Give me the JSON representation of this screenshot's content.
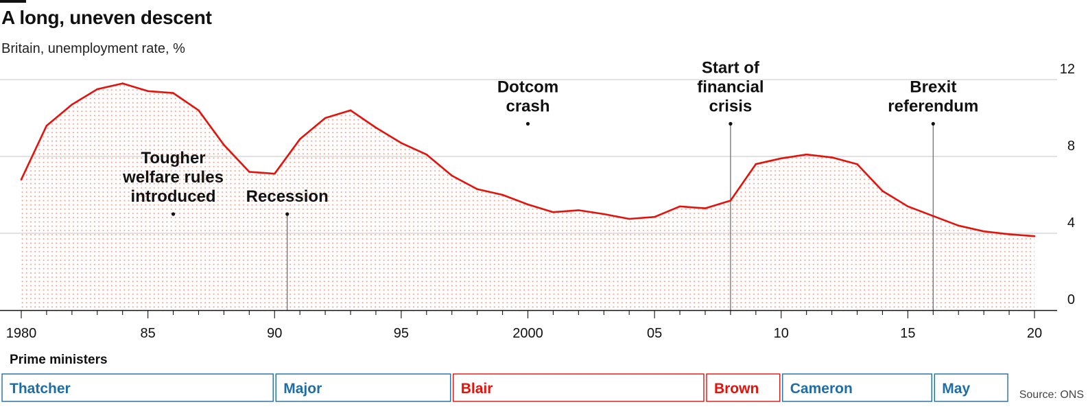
{
  "title": "A long, uneven descent",
  "subtitle": "Britain, unemployment rate, %",
  "source": "Source: ONS",
  "pm_heading": "Prime ministers",
  "colors": {
    "line": "#e3120b",
    "dots": "#f4a08c",
    "grid": "#d0d0d0",
    "blue": "#1f6da6",
    "red": "#e3120b"
  },
  "chart_data": {
    "type": "area",
    "x": [
      1980,
      1981,
      1982,
      1983,
      1984,
      1985,
      1986,
      1987,
      1988,
      1989,
      1990,
      1991,
      1992,
      1993,
      1994,
      1995,
      1996,
      1997,
      1998,
      1999,
      2000,
      2001,
      2002,
      2003,
      2004,
      2005,
      2006,
      2007,
      2008,
      2009,
      2010,
      2011,
      2012,
      2013,
      2014,
      2015,
      2016,
      2017,
      2018,
      2019,
      2020
    ],
    "values": [
      6.8,
      9.6,
      10.7,
      11.5,
      11.8,
      11.4,
      11.3,
      10.4,
      8.6,
      7.2,
      7.1,
      8.9,
      10.0,
      10.4,
      9.5,
      8.7,
      8.1,
      7.0,
      6.3,
      6.0,
      5.5,
      5.1,
      5.2,
      5.0,
      4.75,
      4.85,
      5.4,
      5.3,
      5.7,
      7.6,
      7.9,
      8.1,
      7.95,
      7.6,
      6.2,
      5.4,
      4.9,
      4.4,
      4.1,
      3.95,
      3.85
    ],
    "xlim": [
      1980,
      2020
    ],
    "ylim": [
      0,
      12
    ],
    "x_ticks": [
      1980,
      1985,
      1990,
      1995,
      2000,
      2005,
      2010,
      2015,
      2020
    ],
    "x_tick_labels": [
      "1980",
      "85",
      "90",
      "95",
      "2000",
      "05",
      "10",
      "15",
      "20"
    ],
    "y_ticks": [
      0,
      4,
      8,
      12
    ],
    "y_tick_labels": [
      "0",
      "4",
      "8",
      "12"
    ],
    "grid": true,
    "annotations": [
      {
        "lines": [
          "Tougher",
          "welfare rules",
          "introduced"
        ],
        "x": 1986,
        "y": 5.0,
        "leader": false
      },
      {
        "lines": [
          "Recession"
        ],
        "x": 1990.5,
        "y": 5.0,
        "leader": true
      },
      {
        "lines": [
          "Dotcom",
          "crash"
        ],
        "x": 2000,
        "y": 9.7,
        "leader": false
      },
      {
        "lines": [
          "Start of",
          "financial",
          "crisis"
        ],
        "x": 2008,
        "y": 9.7,
        "leader": true
      },
      {
        "lines": [
          "Brexit",
          "referendum"
        ],
        "x": 2016,
        "y": 9.7,
        "leader": true
      }
    ],
    "prime_ministers": [
      {
        "name": "Thatcher",
        "start": 1980,
        "end": 1990,
        "party_color": "blue"
      },
      {
        "name": "Major",
        "start": 1990,
        "end": 1997,
        "party_color": "blue"
      },
      {
        "name": "Blair",
        "start": 1997,
        "end": 2007,
        "party_color": "red"
      },
      {
        "name": "Brown",
        "start": 2007,
        "end": 2010,
        "party_color": "red"
      },
      {
        "name": "Cameron",
        "start": 2010,
        "end": 2016,
        "party_color": "blue"
      },
      {
        "name": "May",
        "start": 2016,
        "end": 2019,
        "party_color": "blue"
      }
    ]
  }
}
